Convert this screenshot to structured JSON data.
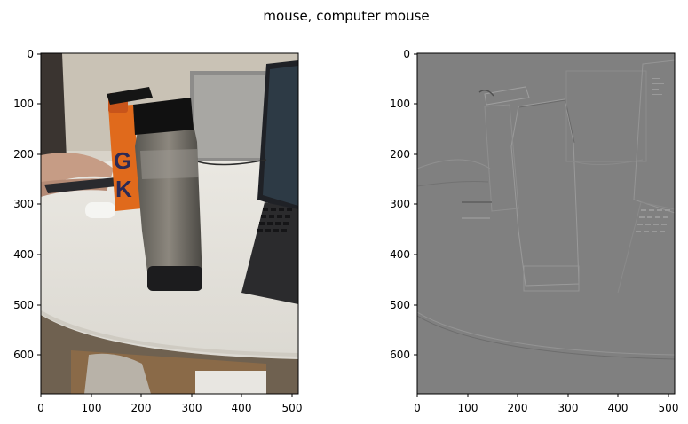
{
  "figure": {
    "title": "mouse, computer mouse"
  },
  "panels": [
    {
      "name": "photo",
      "x_ticks": [
        "0",
        "100",
        "200",
        "300",
        "400",
        "500"
      ],
      "y_ticks": [
        "0",
        "100",
        "200",
        "300",
        "400",
        "500",
        "600"
      ]
    },
    {
      "name": "gradient-map",
      "x_ticks": [
        "0",
        "100",
        "200",
        "300",
        "400",
        "500"
      ],
      "y_ticks": [
        "0",
        "100",
        "200",
        "300",
        "400",
        "500",
        "600"
      ]
    }
  ],
  "colors": {
    "table": "#e4e1da",
    "gradient_gray": "#808080",
    "bottle_orange": "#e06a1c",
    "laptop": "#2b2b2d"
  }
}
